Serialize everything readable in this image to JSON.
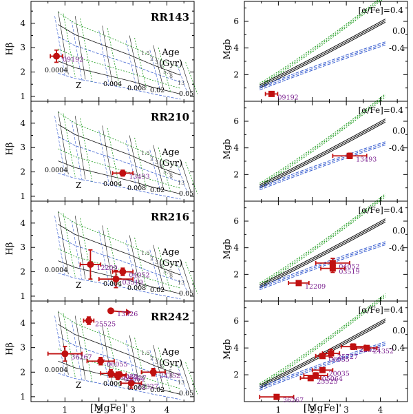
{
  "figure": {
    "xlabel": "[MgFe]'",
    "ylabel_left": "Hβ",
    "ylabel_right": "Mgb",
    "colors": {
      "data": "#c01010",
      "label": "#7a1f8f",
      "solar": "#111111",
      "enhanced": "#1a9a1a",
      "depleted": "#3a5fd0",
      "grid": "#2a2a2a"
    }
  },
  "chart_data": [
    {
      "panel": "RR143",
      "type": "scatter",
      "title": "RR143",
      "x_range": [
        0,
        4.8
      ],
      "y_range": [
        0.8,
        4.9
      ],
      "xlabel": "[MgFe]'",
      "ylabel": "Hβ",
      "points": [
        {
          "id": "09192",
          "x": 0.75,
          "y": 2.65,
          "xerr": 0.18,
          "yerr": 0.25
        }
      ]
    },
    {
      "panel": "RR143",
      "type": "scatter",
      "x_range": [
        0,
        4.8
      ],
      "y_range": [
        0,
        7.5
      ],
      "xlabel": "[MgFe]'",
      "ylabel": "Mgb",
      "points": [
        {
          "id": "09192",
          "x": 0.8,
          "y": 0.55,
          "xerr": 0.18,
          "yerr": 0.15
        }
      ]
    },
    {
      "panel": "RR210",
      "type": "scatter",
      "title": "RR210",
      "x_range": [
        0,
        4.8
      ],
      "y_range": [
        0.8,
        4.9
      ],
      "points": [
        {
          "id": "13493",
          "x": 2.7,
          "y": 1.95,
          "xerr": 0.3,
          "yerr": 0.12
        }
      ]
    },
    {
      "panel": "RR210",
      "type": "scatter",
      "x_range": [
        0,
        4.8
      ],
      "y_range": [
        0,
        7.5
      ],
      "points": [
        {
          "id": "13493",
          "x": 3.1,
          "y": 3.4,
          "xerr": 0.5,
          "yerr": 0.2
        }
      ]
    },
    {
      "panel": "RR216",
      "type": "scatter",
      "title": "RR216",
      "x_range": [
        0,
        4.8
      ],
      "y_range": [
        0.8,
        4.9
      ],
      "points": [
        {
          "id": "12209",
          "x": 1.75,
          "y": 2.3,
          "xerr": 0.3,
          "yerr": 0.6
        },
        {
          "id": "04052",
          "x": 2.7,
          "y": 2.0,
          "xerr": 0.3,
          "yerr": 0.15
        },
        {
          "id": "03519",
          "x": 2.5,
          "y": 1.7,
          "xerr": 0.5,
          "yerr": 0.35
        }
      ]
    },
    {
      "panel": "RR216",
      "type": "scatter",
      "x_range": [
        0,
        4.8
      ],
      "y_range": [
        0,
        7.5
      ],
      "points": [
        {
          "id": "12209",
          "x": 1.6,
          "y": 1.35,
          "xerr": 0.3,
          "yerr": 0.15
        },
        {
          "id": "04052",
          "x": 2.6,
          "y": 2.85,
          "xerr": 0.5,
          "yerr": 0.35
        },
        {
          "id": "03519",
          "x": 2.6,
          "y": 2.45,
          "xerr": 0.35,
          "yerr": 0.3
        }
      ]
    },
    {
      "panel": "RR242",
      "type": "scatter",
      "title": "RR242",
      "x_range": [
        0,
        4.8
      ],
      "y_range": [
        0.8,
        4.9
      ],
      "points": [
        {
          "id": "13326",
          "x": 2.35,
          "y": 4.5,
          "xerr": 0.0,
          "yerr": 0.0,
          "arrow": true
        },
        {
          "id": "25525",
          "x": 1.7,
          "y": 4.1,
          "xerr": 0.15,
          "yerr": 0.15
        },
        {
          "id": "36267",
          "x": 1.0,
          "y": 2.75,
          "xerr": 0.5,
          "yerr": 0.3
        },
        {
          "id": "06055",
          "x": 2.05,
          "y": 2.45,
          "xerr": 0.4,
          "yerr": 0.15
        },
        {
          "id": "20035",
          "x": 2.35,
          "y": 1.95,
          "xerr": 0.3,
          "yerr": 0.15
        },
        {
          "id": "22327",
          "x": 2.95,
          "y": 1.55,
          "xerr": 0.3,
          "yerr": 0.2
        },
        {
          "id": "24352",
          "x": 3.6,
          "y": 2.0,
          "xerr": 0.35,
          "yerr": 0.15
        },
        {
          "id": "25727",
          "x": 2.6,
          "y": 1.9,
          "xerr": 0.2,
          "yerr": 0.1
        },
        {
          "id": "05064",
          "x": 2.55,
          "y": 1.85,
          "xerr": 0.25,
          "yerr": 0.15
        }
      ]
    },
    {
      "panel": "RR242",
      "type": "scatter",
      "x_range": [
        0,
        4.8
      ],
      "y_range": [
        0,
        7.5
      ],
      "points": [
        {
          "id": "36267",
          "x": 0.95,
          "y": 0.35,
          "xerr": 0.5,
          "yerr": 0.15
        },
        {
          "id": "25525",
          "x": 1.95,
          "y": 1.75,
          "xerr": 0.3,
          "yerr": 0.15
        },
        {
          "id": "20035",
          "x": 2.3,
          "y": 2.35,
          "xerr": 0.3,
          "yerr": 0.15
        },
        {
          "id": "05064",
          "x": 2.1,
          "y": 1.95,
          "xerr": 0.35,
          "yerr": 0.2
        },
        {
          "id": "25727",
          "x": 2.55,
          "y": 3.6,
          "xerr": 0.25,
          "yerr": 0.3
        },
        {
          "id": "22327",
          "x": 3.2,
          "y": 4.1,
          "xerr": 0.35,
          "yerr": 0.2
        },
        {
          "id": "24352",
          "x": 3.6,
          "y": 4.0,
          "xerr": 0.3,
          "yerr": 0.15
        },
        {
          "id": "06055",
          "x": 2.3,
          "y": 3.4,
          "xerr": 0.2,
          "yerr": 0.15
        }
      ]
    }
  ],
  "left_panels": {
    "age_label": [
      "Age",
      "(Gyr)"
    ],
    "z_label": "Z",
    "z_values": [
      "0.0004",
      "0.004",
      "0.008",
      "0.02",
      "0.05"
    ],
    "age_ticks": [
      "1.5",
      "2",
      "3",
      "4",
      "5.6",
      "8",
      "13"
    ]
  },
  "right_panels": {
    "alpha_label": "[α/Fe]=0.4",
    "labels": [
      "0.0",
      "-0.4"
    ]
  },
  "axes": {
    "x_ticks": [
      "1",
      "2",
      "3",
      "4"
    ],
    "hb_ticks": [
      "1",
      "2",
      "3",
      "4"
    ],
    "mgb_ticks": [
      "2",
      "4",
      "6"
    ]
  }
}
